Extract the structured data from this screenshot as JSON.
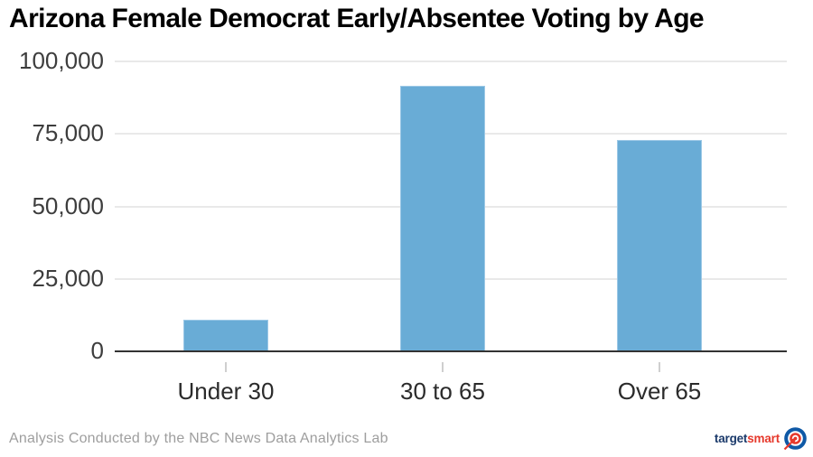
{
  "footer": {
    "credit": "Analysis Conducted by the NBC News Data Analytics Lab"
  },
  "logo": {
    "text_primary": "target",
    "text_secondary": "smart",
    "icon": "bullseye-arrow-icon",
    "color_primary": "#1b3a6b",
    "color_secondary": "#e6392c"
  },
  "chart_data": {
    "type": "bar",
    "title": "Arizona Female Democrat Early/Absentee Voting by Age",
    "categories": [
      "Under 30",
      "30 to 65",
      "Over 65"
    ],
    "values": [
      11000,
      91500,
      73000
    ],
    "xlabel": "",
    "ylabel": "",
    "ylim": [
      0,
      100000
    ],
    "yticks": [
      0,
      25000,
      50000,
      75000,
      100000
    ],
    "ytick_labels": [
      "0",
      "25,000",
      "50,000",
      "75,000",
      "100,000"
    ],
    "grid": true,
    "legend": "none",
    "bar_color": "#69acd6",
    "bar_border_color": "#9cc8e6",
    "gridline_color": "#e9e9e9",
    "axis_line_color": "#333333",
    "tick_mark_color": "#cfcfcf"
  }
}
